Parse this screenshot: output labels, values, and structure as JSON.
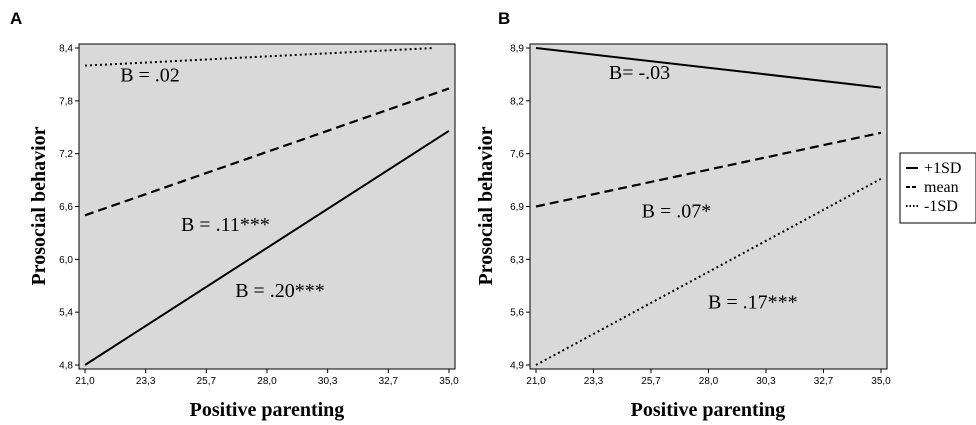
{
  "chart_data": [
    {
      "type": "line",
      "panel_label": "A",
      "xlabel": "Positive parenting",
      "ylabel": "Prosocial behavior",
      "xlim": [
        21.0,
        35.0
      ],
      "ylim": [
        4.8,
        8.4
      ],
      "x_ticks": [
        "21,0",
        "23,3",
        "25,7",
        "28,0",
        "30,3",
        "32,7",
        "35,0"
      ],
      "y_ticks": [
        "4,8",
        "5,4",
        "6,0",
        "6,6",
        "7,2",
        "7,8",
        "8,4"
      ],
      "grid": false,
      "background": "#d9d9d9",
      "series": [
        {
          "style": "dotted",
          "x": [
            21.0,
            34.4
          ],
          "values": [
            8.2,
            8.4
          ]
        },
        {
          "style": "dashed",
          "x": [
            21.0,
            35.0
          ],
          "values": [
            6.5,
            7.94
          ]
        },
        {
          "style": "solid",
          "x": [
            21.0,
            35.0
          ],
          "values": [
            4.8,
            7.46
          ]
        }
      ],
      "annotations": [
        {
          "text": "B = .02",
          "x": 23.5,
          "y": 8.1
        },
        {
          "text": "B = .11***",
          "x": 26.4,
          "y": 6.4
        },
        {
          "text": "B = .20***",
          "x": 28.5,
          "y": 5.65
        }
      ]
    },
    {
      "type": "line",
      "panel_label": "B",
      "xlabel": "Positive parenting",
      "ylabel": "Prosocial behavior",
      "xlim": [
        21.0,
        35.0
      ],
      "ylim": [
        4.9,
        8.9
      ],
      "x_ticks": [
        "21,0",
        "23,3",
        "25,7",
        "28,0",
        "30,3",
        "32,7",
        "35,0"
      ],
      "y_ticks": [
        "4,9",
        "5,6",
        "6,3",
        "6,9",
        "7,6",
        "8,2",
        "8,9"
      ],
      "grid": false,
      "background": "#d9d9d9",
      "series": [
        {
          "name": "+1SD",
          "style": "solid",
          "x": [
            21.0,
            35.0
          ],
          "values": [
            8.9,
            8.4
          ]
        },
        {
          "name": "mean",
          "style": "dashed",
          "x": [
            21.0,
            35.0
          ],
          "values": [
            6.9,
            7.83
          ]
        },
        {
          "name": "-1SD",
          "style": "dotted",
          "x": [
            21.0,
            35.0
          ],
          "values": [
            4.9,
            7.25
          ]
        }
      ],
      "annotations": [
        {
          "text": "B= -.03",
          "x": 25.2,
          "y": 8.6
        },
        {
          "text": "B = .07*",
          "x": 26.7,
          "y": 6.85
        },
        {
          "text": "B = .17***",
          "x": 29.8,
          "y": 5.7
        }
      ]
    }
  ],
  "legend": {
    "placement": "right",
    "items": [
      {
        "label": "+1SD",
        "style": "solid"
      },
      {
        "label": "mean",
        "style": "dashed"
      },
      {
        "label": "-1SD",
        "style": "dotted"
      }
    ]
  }
}
